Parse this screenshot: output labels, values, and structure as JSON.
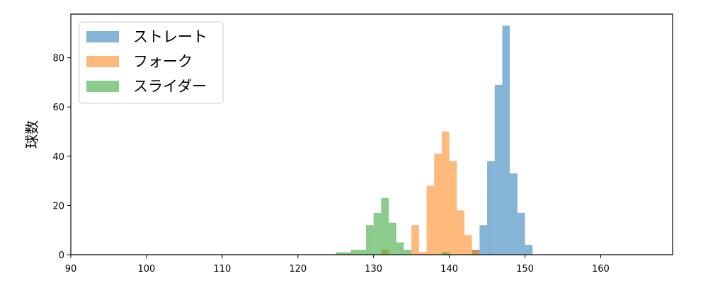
{
  "chart_data": {
    "type": "bar",
    "title": "",
    "xlabel": "",
    "ylabel": "球数",
    "xlim": [
      90,
      169.5
    ],
    "ylim": [
      0,
      97.7
    ],
    "xticks": [
      90,
      100,
      110,
      120,
      130,
      140,
      150,
      160
    ],
    "yticks": [
      0,
      20,
      40,
      60,
      80
    ],
    "grid": false,
    "legend_position": "top-left",
    "bin_width": 1.0,
    "series": [
      {
        "name": "ストレート",
        "color": "#1f77b4",
        "bins": [
          {
            "x0": 143,
            "x1": 144,
            "count": 2
          },
          {
            "x0": 144,
            "x1": 145,
            "count": 12
          },
          {
            "x0": 145,
            "x1": 146,
            "count": 38
          },
          {
            "x0": 146,
            "x1": 147,
            "count": 69
          },
          {
            "x0": 147,
            "x1": 148,
            "count": 93
          },
          {
            "x0": 148,
            "x1": 149,
            "count": 33
          },
          {
            "x0": 149,
            "x1": 150,
            "count": 17
          },
          {
            "x0": 150,
            "x1": 151,
            "count": 4
          }
        ]
      },
      {
        "name": "フォーク",
        "color": "#ff7f0e",
        "bins": [
          {
            "x0": 131,
            "x1": 132,
            "count": 2
          },
          {
            "x0": 135,
            "x1": 136,
            "count": 12
          },
          {
            "x0": 136,
            "x1": 137,
            "count": 1
          },
          {
            "x0": 137,
            "x1": 138,
            "count": 28
          },
          {
            "x0": 138,
            "x1": 139,
            "count": 41
          },
          {
            "x0": 139,
            "x1": 140,
            "count": 50
          },
          {
            "x0": 140,
            "x1": 141,
            "count": 38
          },
          {
            "x0": 141,
            "x1": 142,
            "count": 18
          },
          {
            "x0": 142,
            "x1": 143,
            "count": 8
          },
          {
            "x0": 143,
            "x1": 144,
            "count": 2
          }
        ]
      },
      {
        "name": "スライダー",
        "color": "#2ca02c",
        "bins": [
          {
            "x0": 125,
            "x1": 126,
            "count": 1
          },
          {
            "x0": 126,
            "x1": 127,
            "count": 1
          },
          {
            "x0": 127,
            "x1": 128,
            "count": 2
          },
          {
            "x0": 128,
            "x1": 129,
            "count": 2
          },
          {
            "x0": 129,
            "x1": 130,
            "count": 12
          },
          {
            "x0": 130,
            "x1": 131,
            "count": 17
          },
          {
            "x0": 131,
            "x1": 132,
            "count": 23
          },
          {
            "x0": 132,
            "x1": 133,
            "count": 13
          },
          {
            "x0": 133,
            "x1": 134,
            "count": 5
          },
          {
            "x0": 134,
            "x1": 135,
            "count": 2
          },
          {
            "x0": 139,
            "x1": 140,
            "count": 1
          }
        ]
      }
    ]
  }
}
